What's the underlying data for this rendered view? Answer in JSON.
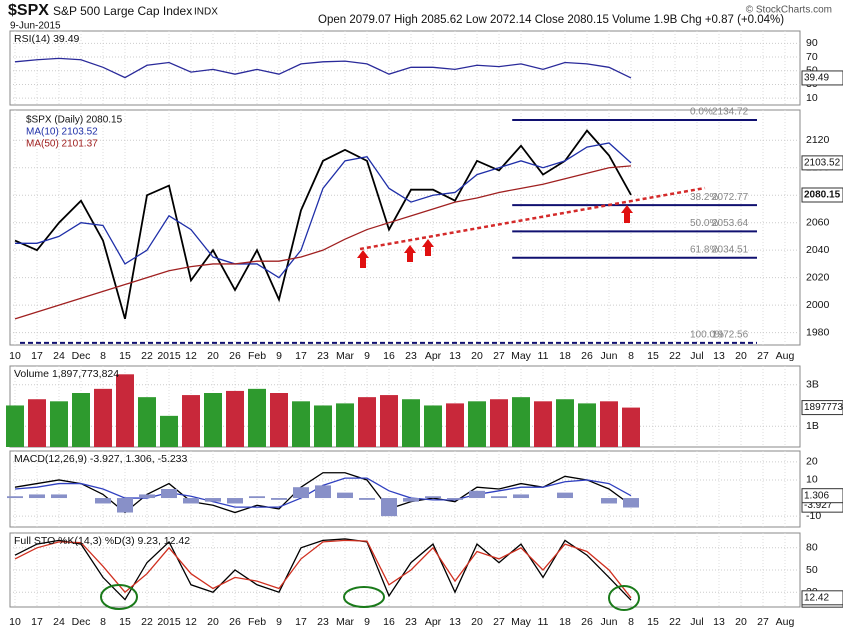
{
  "header": {
    "symbol": "$SPX",
    "name": "S&P 500 Large Cap Index",
    "exchange": "INDX",
    "date": "9-Jun-2015",
    "quote": "Open 2079.07 High 2085.62 Low 2072.14 Close 2080.15 Volume 1.9B Chg +0.87 (+0.04%)",
    "brand": "© StockCharts.com"
  },
  "x_categories": [
    "10",
    "17",
    "24",
    "Dec",
    "8",
    "15",
    "22",
    "2015",
    "12",
    "20",
    "26",
    "Feb",
    "9",
    "17",
    "23",
    "Mar",
    "9",
    "16",
    "23",
    "Apr",
    "13",
    "20",
    "27",
    "May",
    "11",
    "18",
    "26",
    "Jun",
    "8",
    "15",
    "22",
    "Jul",
    "13",
    "20",
    "27",
    "Aug"
  ],
  "chart_data": [
    {
      "type": "line",
      "title": "RSI(14) 39.49",
      "ylim": [
        0,
        108
      ],
      "yticks": [
        10,
        30,
        50,
        70,
        90
      ],
      "series": [
        {
          "name": "RSI(14)",
          "color": "#2a2a9a",
          "values": [
            63,
            66,
            68,
            66,
            55,
            40,
            58,
            62,
            48,
            52,
            45,
            52,
            45,
            60,
            63,
            64,
            60,
            45,
            55,
            55,
            52,
            58,
            56,
            60,
            52,
            62,
            60,
            55,
            39.49,
            null,
            null,
            null,
            null,
            null,
            null,
            null
          ]
        }
      ]
    },
    {
      "type": "line",
      "title": "$SPX (Daily) 2080.15",
      "ylim": [
        1971,
        2142
      ],
      "yticks": [
        1980,
        2000,
        2020,
        2040,
        2060,
        2080,
        2100,
        2120
      ],
      "grid": true,
      "series": [
        {
          "name": "$SPX (Daily) 2080.15",
          "color": "#000000",
          "values": [
            2047,
            2040,
            2060,
            2076,
            2047,
            1990,
            2080,
            2087,
            2018,
            2040,
            2011,
            2040,
            2004,
            2069,
            2105,
            2113,
            2105,
            2055,
            2084,
            2084,
            2076,
            2105,
            2098,
            2116,
            2095,
            2105,
            2127,
            2109,
            2080.15,
            null,
            null,
            null,
            null,
            null,
            null,
            null
          ]
        },
        {
          "name": "MA(10) 2103.52",
          "color": "#1f2fa8",
          "values": [
            2045,
            2045,
            2050,
            2060,
            2058,
            2030,
            2040,
            2065,
            2055,
            2035,
            2030,
            2030,
            2020,
            2040,
            2085,
            2105,
            2108,
            2085,
            2075,
            2080,
            2082,
            2095,
            2100,
            2105,
            2100,
            2105,
            2115,
            2118,
            2103.52,
            null,
            null,
            null,
            null,
            null,
            null,
            null
          ]
        },
        {
          "name": "MA(50) 2101.37",
          "color": "#a02020",
          "values": [
            1990,
            1995,
            2000,
            2005,
            2010,
            2015,
            2020,
            2025,
            2028,
            2030,
            2030,
            2032,
            2032,
            2035,
            2040,
            2048,
            2055,
            2060,
            2065,
            2070,
            2075,
            2078,
            2082,
            2085,
            2088,
            2092,
            2096,
            2100,
            2101.37,
            null,
            null,
            null,
            null,
            null,
            null,
            null
          ]
        }
      ],
      "levels": [
        {
          "label": "0.0%",
          "value": 2134.72
        },
        {
          "label": "38.2%",
          "value": 2072.77
        },
        {
          "label": "50.0%",
          "value": 2053.64
        },
        {
          "label": "61.8%",
          "value": 2034.51
        },
        {
          "label": "100.0%",
          "value": 1972.56
        }
      ]
    },
    {
      "type": "bar",
      "title": "Volume 1,897,773,824",
      "axis_label": "1897773",
      "ylim": [
        0,
        3900000000
      ],
      "yticks": [
        {
          "value": 1000000000,
          "label": "1B"
        },
        {
          "value": 3000000000,
          "label": "3B"
        }
      ],
      "colors": {
        "up": "#2e9a2e",
        "down": "#c8283a"
      },
      "values": [
        2000000000,
        2300000000,
        2200000000,
        2600000000,
        2800000000,
        3500000000,
        2400000000,
        1500000000,
        2500000000,
        2600000000,
        2700000000,
        2800000000,
        2600000000,
        2200000000,
        2000000000,
        2100000000,
        2400000000,
        2500000000,
        2300000000,
        2000000000,
        2100000000,
        2200000000,
        2300000000,
        2400000000,
        2200000000,
        2300000000,
        2100000000,
        2200000000,
        1897773824,
        null,
        null,
        null,
        null,
        null,
        null,
        null
      ]
    },
    {
      "type": "line",
      "title": "MACD(12,26,9) -3.927, 1.306, -5.233",
      "ylim": [
        -16,
        26
      ],
      "yticks": [
        -10,
        10,
        20
      ],
      "series": [
        {
          "name": "MACD",
          "color": "#000000",
          "values": [
            6,
            8,
            10,
            8,
            2,
            -8,
            2,
            8,
            -2,
            -4,
            -8,
            -4,
            -6,
            6,
            14,
            14,
            10,
            -6,
            -2,
            0,
            -2,
            6,
            5,
            8,
            6,
            12,
            10,
            5,
            -3.927,
            null,
            null,
            null,
            null,
            null,
            null,
            null
          ]
        },
        {
          "name": "Signal",
          "color": "#3040c0",
          "values": [
            5,
            6,
            8,
            8,
            5,
            0,
            0,
            3,
            1,
            -2,
            -5,
            -5,
            -5,
            0,
            7,
            11,
            11,
            4,
            0,
            -1,
            -1,
            2,
            4,
            6,
            6,
            9,
            10,
            8,
            1.306,
            null,
            null,
            null,
            null,
            null,
            null,
            null
          ]
        },
        {
          "name": "Histogram",
          "color": "#8890c8",
          "style": "histogram",
          "values": [
            1,
            2,
            2,
            0,
            -3,
            -8,
            2,
            5,
            -3,
            -2,
            -3,
            1,
            -1,
            6,
            7,
            3,
            -1,
            -10,
            -2,
            1,
            -1,
            4,
            1,
            2,
            0,
            3,
            0,
            -3,
            -5.233,
            null,
            null,
            null,
            null,
            null,
            null,
            null
          ]
        }
      ]
    },
    {
      "type": "line",
      "title": "Full STO %K(14,3) %D(3) 9.23, 12.42",
      "ylim": [
        0,
        100
      ],
      "yticks": [
        20,
        50,
        80
      ],
      "series": [
        {
          "name": "%K",
          "color": "#000000",
          "values": [
            70,
            85,
            90,
            85,
            40,
            10,
            60,
            88,
            30,
            20,
            50,
            30,
            20,
            80,
            90,
            92,
            88,
            15,
            60,
            85,
            20,
            85,
            60,
            85,
            40,
            90,
            70,
            40,
            9.23,
            null,
            null,
            null,
            null,
            null,
            null,
            null
          ]
        },
        {
          "name": "%D",
          "color": "#d03020",
          "values": [
            65,
            80,
            88,
            87,
            55,
            20,
            45,
            80,
            45,
            25,
            40,
            35,
            25,
            65,
            88,
            90,
            89,
            30,
            50,
            80,
            35,
            75,
            65,
            80,
            50,
            85,
            75,
            50,
            12.42,
            null,
            null,
            null,
            null,
            null,
            null,
            null
          ]
        }
      ]
    }
  ]
}
